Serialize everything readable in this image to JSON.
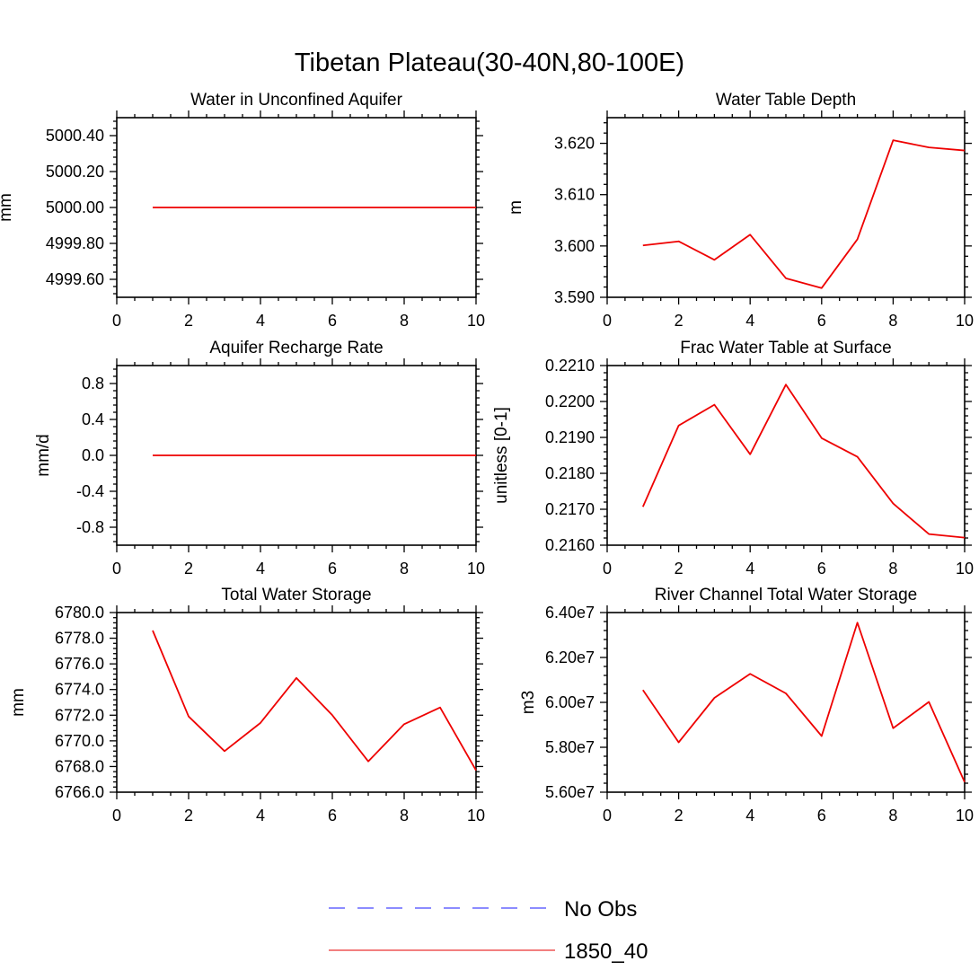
{
  "figure": {
    "title": "Tibetan Plateau(30-40N,80-100E)",
    "legend": {
      "placement": "bottom-center",
      "entries": [
        {
          "label": "No Obs",
          "color": "#6666ff",
          "style": "dashed"
        },
        {
          "label": "1850_40",
          "color": "#ee5555",
          "style": "solid"
        }
      ]
    }
  },
  "chart_data": [
    {
      "type": "line",
      "title": "Water in Unconfined Aquifer",
      "ylabel": "mm",
      "xlim": [
        0,
        10
      ],
      "ylim": [
        4999.5,
        5000.5
      ],
      "xticks": [
        "0",
        "2",
        "4",
        "6",
        "8",
        "10"
      ],
      "yticks": [
        {
          "v": 4999.6,
          "label": "4999.60"
        },
        {
          "v": 4999.8,
          "label": "4999.80"
        },
        {
          "v": 5000.0,
          "label": "5000.00"
        },
        {
          "v": 5000.2,
          "label": "5000.20"
        },
        {
          "v": 5000.4,
          "label": "5000.40"
        }
      ],
      "series": [
        {
          "name": "1850_40",
          "color": "#ee0000",
          "x": [
            1,
            2,
            3,
            4,
            5,
            6,
            7,
            8,
            9,
            10
          ],
          "y": [
            5000,
            5000,
            5000,
            5000,
            5000,
            5000,
            5000,
            5000,
            5000,
            5000
          ]
        }
      ]
    },
    {
      "type": "line",
      "title": "Water Table Depth",
      "ylabel": "m",
      "xlim": [
        0,
        10
      ],
      "ylim": [
        3.59,
        3.625
      ],
      "xticks": [
        "0",
        "2",
        "4",
        "6",
        "8",
        "10"
      ],
      "yticks": [
        {
          "v": 3.59,
          "label": "3.590"
        },
        {
          "v": 3.6,
          "label": "3.600"
        },
        {
          "v": 3.61,
          "label": "3.610"
        },
        {
          "v": 3.62,
          "label": "3.620"
        }
      ],
      "series": [
        {
          "name": "1850_40",
          "color": "#ee0000",
          "x": [
            1,
            2,
            3,
            4,
            5,
            6,
            7,
            8,
            9,
            10
          ],
          "y": [
            3.6001,
            3.6009,
            3.5973,
            3.6022,
            3.5937,
            3.5918,
            3.6013,
            3.6206,
            3.6192,
            3.6186
          ]
        }
      ]
    },
    {
      "type": "line",
      "title": "Aquifer Recharge Rate",
      "ylabel": "mm/d",
      "xlim": [
        0,
        10
      ],
      "ylim": [
        -1,
        1
      ],
      "xticks": [
        "0",
        "2",
        "4",
        "6",
        "8",
        "10"
      ],
      "yticks": [
        {
          "v": -0.8,
          "label": "-0.8"
        },
        {
          "v": -0.4,
          "label": "-0.4"
        },
        {
          "v": 0.0,
          "label": "0.0"
        },
        {
          "v": 0.4,
          "label": "0.4"
        },
        {
          "v": 0.8,
          "label": "0.8"
        }
      ],
      "series": [
        {
          "name": "1850_40",
          "color": "#ee0000",
          "x": [
            1,
            2,
            3,
            4,
            5,
            6,
            7,
            8,
            9,
            10
          ],
          "y": [
            0,
            0,
            0,
            0,
            0,
            0,
            0,
            0,
            0,
            0
          ]
        }
      ]
    },
    {
      "type": "line",
      "title": "Frac Water Table at Surface",
      "ylabel": "unitless [0-1]",
      "xlim": [
        0,
        10
      ],
      "ylim": [
        0.216,
        0.221
      ],
      "xticks": [
        "0",
        "2",
        "4",
        "6",
        "8",
        "10"
      ],
      "yticks": [
        {
          "v": 0.216,
          "label": "0.2160"
        },
        {
          "v": 0.217,
          "label": "0.2170"
        },
        {
          "v": 0.218,
          "label": "0.2180"
        },
        {
          "v": 0.219,
          "label": "0.2190"
        },
        {
          "v": 0.22,
          "label": "0.2200"
        },
        {
          "v": 0.221,
          "label": "0.2210"
        }
      ],
      "series": [
        {
          "name": "1850_40",
          "color": "#ee0000",
          "x": [
            1,
            2,
            3,
            4,
            5,
            6,
            7,
            8,
            9,
            10
          ],
          "y": [
            0.21707,
            0.21933,
            0.21991,
            0.21853,
            0.22047,
            0.21898,
            0.21846,
            0.21716,
            0.21631,
            0.21621
          ]
        }
      ]
    },
    {
      "type": "line",
      "title": "Total Water Storage",
      "ylabel": "mm",
      "xlim": [
        0,
        10
      ],
      "ylim": [
        6766,
        6780
      ],
      "xticks": [
        "0",
        "2",
        "4",
        "6",
        "8",
        "10"
      ],
      "yticks": [
        {
          "v": 6766,
          "label": "6766.0"
        },
        {
          "v": 6768,
          "label": "6768.0"
        },
        {
          "v": 6770,
          "label": "6770.0"
        },
        {
          "v": 6772,
          "label": "6772.0"
        },
        {
          "v": 6774,
          "label": "6774.0"
        },
        {
          "v": 6776,
          "label": "6776.0"
        },
        {
          "v": 6778,
          "label": "6778.0"
        },
        {
          "v": 6780,
          "label": "6780.0"
        }
      ],
      "series": [
        {
          "name": "1850_40",
          "color": "#ee0000",
          "x": [
            1,
            2,
            3,
            4,
            5,
            6,
            7,
            8,
            9,
            10
          ],
          "y": [
            6778.6,
            6771.9,
            6769.2,
            6771.4,
            6774.9,
            6772.0,
            6768.4,
            6771.3,
            6772.6,
            6767.7
          ]
        }
      ]
    },
    {
      "type": "line",
      "title": "River Channel Total Water Storage",
      "ylabel": "m3",
      "xlim": [
        0,
        10
      ],
      "ylim": [
        56000000,
        64000000
      ],
      "xticks": [
        "0",
        "2",
        "4",
        "6",
        "8",
        "10"
      ],
      "yticks": [
        {
          "v": 56000000,
          "label": "5.60e7"
        },
        {
          "v": 58000000,
          "label": "5.80e7"
        },
        {
          "v": 60000000,
          "label": "6.00e7"
        },
        {
          "v": 62000000,
          "label": "6.20e7"
        },
        {
          "v": 64000000,
          "label": "6.40e7"
        }
      ],
      "series": [
        {
          "name": "1850_40",
          "color": "#ee0000",
          "x": [
            1,
            2,
            3,
            4,
            5,
            6,
            7,
            8,
            9,
            10
          ],
          "y": [
            60550000,
            58220000,
            60200000,
            61270000,
            60400000,
            58500000,
            63550000,
            58850000,
            60020000,
            56450000
          ]
        }
      ]
    }
  ]
}
